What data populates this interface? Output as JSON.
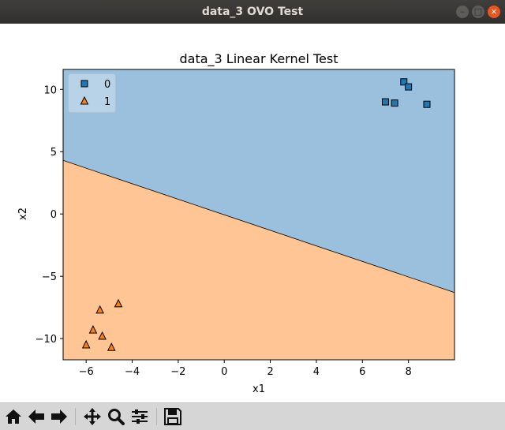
{
  "window": {
    "title": "data_3 OVO Test"
  },
  "toolbar": {
    "items": [
      "home",
      "back",
      "forward",
      "pan",
      "zoom",
      "configure-subplots",
      "save"
    ]
  },
  "chart_data": {
    "type": "scatter",
    "title": "data_3 Linear Kernel Test",
    "xlabel": "x1",
    "ylabel": "x2",
    "xlim": [
      -7,
      10
    ],
    "ylim": [
      -11.7,
      11.6
    ],
    "xticks": [
      -6,
      -4,
      -2,
      0,
      2,
      4,
      6,
      8
    ],
    "xtick_labels": [
      "−6",
      "−4",
      "−2",
      "0",
      "2",
      "4",
      "6",
      "8"
    ],
    "yticks": [
      -10,
      -5,
      0,
      5,
      10
    ],
    "ytick_labels": [
      "−10",
      "−5",
      "0",
      "5",
      "10"
    ],
    "legend": {
      "placement": "top-left",
      "entries": [
        {
          "label": "0",
          "marker": "square",
          "color": "#1f77b4"
        },
        {
          "label": "1",
          "marker": "triangle",
          "color": "#ff7f0e"
        }
      ]
    },
    "regions": [
      {
        "class": "0",
        "color": "#9ac0de"
      },
      {
        "class": "1",
        "color": "#ffc594"
      }
    ],
    "decision_boundary": [
      {
        "x": -7,
        "y": 4.3
      },
      {
        "x": 10,
        "y": -6.3
      }
    ],
    "series": [
      {
        "name": "0",
        "marker": "square",
        "color": "#1f77b4",
        "points": [
          {
            "x": 7.8,
            "y": 10.6
          },
          {
            "x": 8.0,
            "y": 10.2
          },
          {
            "x": 7.0,
            "y": 9.0
          },
          {
            "x": 7.4,
            "y": 8.9
          },
          {
            "x": 8.8,
            "y": 8.8
          }
        ]
      },
      {
        "name": "1",
        "marker": "triangle",
        "color": "#ff7f0e",
        "points": [
          {
            "x": -4.6,
            "y": -7.2
          },
          {
            "x": -5.4,
            "y": -7.7
          },
          {
            "x": -5.7,
            "y": -9.3
          },
          {
            "x": -5.3,
            "y": -9.8
          },
          {
            "x": -6.0,
            "y": -10.5
          },
          {
            "x": -4.9,
            "y": -10.7
          }
        ]
      }
    ],
    "grid": false
  }
}
